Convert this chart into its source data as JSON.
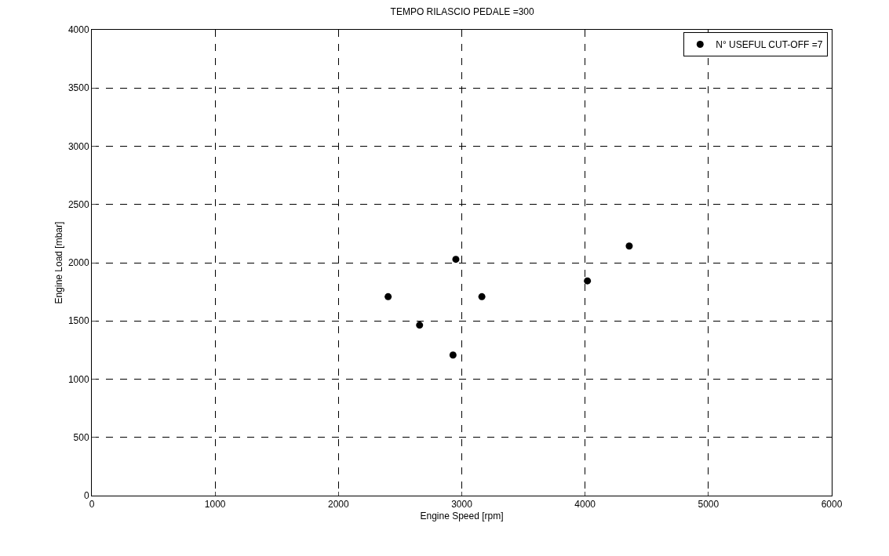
{
  "chart_data": {
    "type": "scatter",
    "title": "TEMPO RILASCIO PEDALE =300",
    "xlabel": "Engine Speed [rpm]",
    "ylabel": "Engine Load [mbar]",
    "x": [
      2403,
      2658,
      2929,
      2952,
      3163,
      4019,
      4358
    ],
    "series": [
      {
        "name": "N° USEFUL CUT-OFF =7",
        "color": "#000000",
        "values": [
          1708,
          1464,
          1207,
          2029,
          1708,
          1844,
          2143
        ]
      }
    ],
    "xlim": [
      0,
      6000
    ],
    "xticks": [
      0,
      1000,
      2000,
      3000,
      4000,
      5000,
      6000
    ],
    "ylim": [
      0,
      4000
    ],
    "yticks": [
      0,
      500,
      1000,
      1500,
      2000,
      2500,
      3000,
      3500,
      4000
    ],
    "grid": true,
    "legend": "top right",
    "marker": "circle"
  }
}
